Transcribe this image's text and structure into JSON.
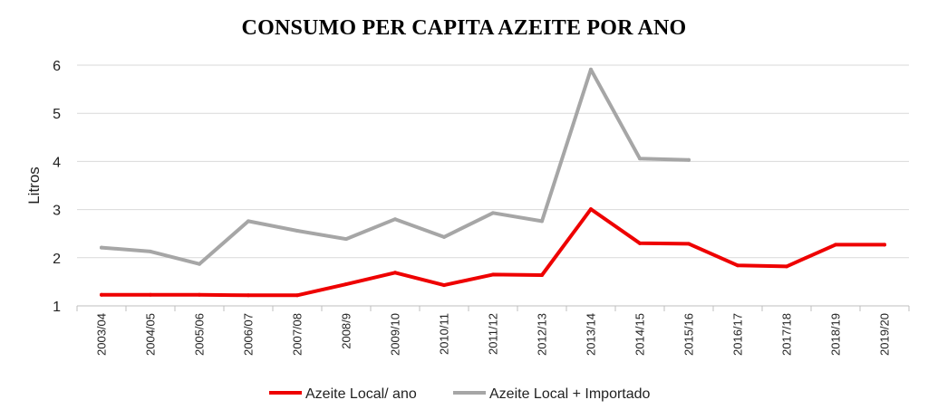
{
  "chart_data": {
    "type": "line",
    "title": "CONSUMO PER CAPITA AZEITE POR ANO",
    "xlabel": "",
    "ylabel": "Litros",
    "ylim": [
      1,
      6
    ],
    "yticks": [
      "1",
      "2",
      "3",
      "4",
      "5",
      "6"
    ],
    "grid": true,
    "legend": "bottom",
    "categories": [
      "2003/04",
      "2004/05",
      "2005/06",
      "2006/07",
      "2007/08",
      "2008/9",
      "2009/10",
      "2010/11",
      "2011/12",
      "2012/13",
      "2013/14",
      "2014/15",
      "2015/16",
      "2016/17",
      "2017/18",
      "2018/19",
      "2019/20"
    ],
    "series": [
      {
        "name": "Azeite Local/ ano",
        "color": "#ee0000",
        "values": [
          1.23,
          1.23,
          1.23,
          1.22,
          1.22,
          1.45,
          1.69,
          1.43,
          1.65,
          1.64,
          3.01,
          2.3,
          2.29,
          1.84,
          1.82,
          2.27,
          2.27
        ]
      },
      {
        "name": "Azeite Local + Importado",
        "color": "#a6a6a6",
        "values": [
          2.21,
          2.13,
          1.87,
          2.76,
          2.56,
          2.39,
          2.8,
          2.43,
          2.93,
          2.76,
          5.91,
          4.06,
          4.03,
          null,
          null,
          null,
          null
        ]
      }
    ]
  }
}
